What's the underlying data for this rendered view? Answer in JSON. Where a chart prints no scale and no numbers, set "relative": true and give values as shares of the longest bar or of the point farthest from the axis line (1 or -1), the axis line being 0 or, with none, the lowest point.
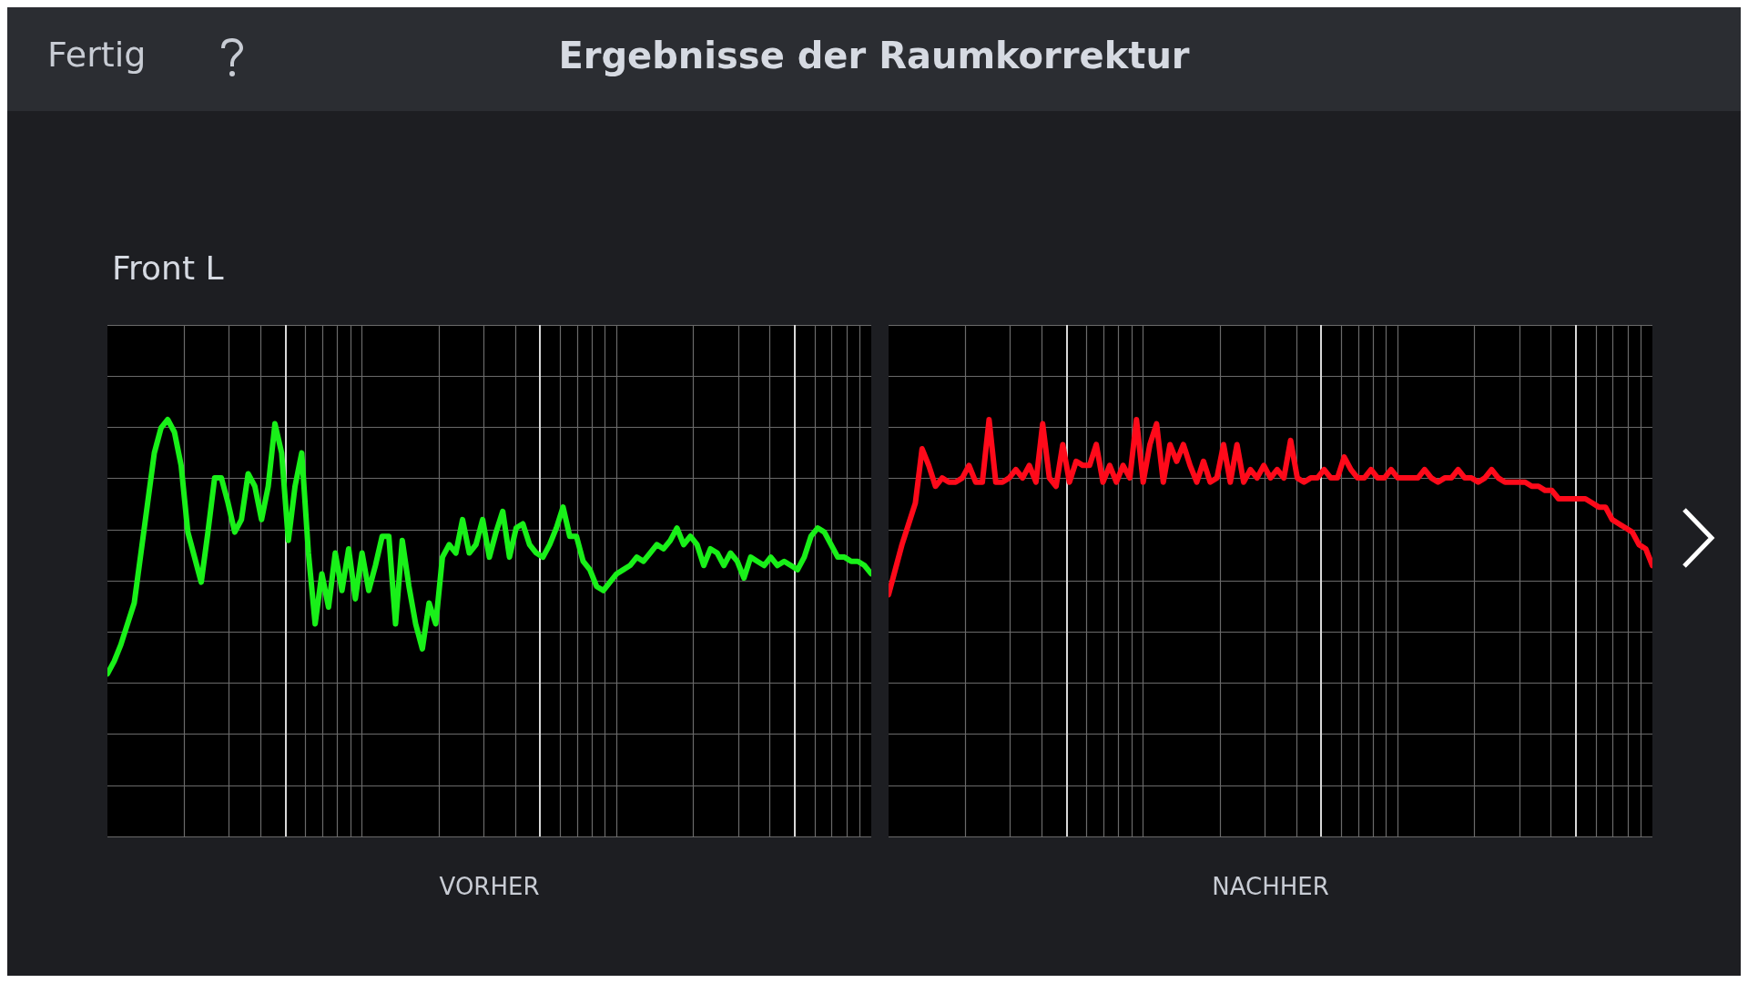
{
  "chart_data": [
    {
      "type": "line",
      "title": "Ergebnisse der Raumkorrektur",
      "subtitle": "Front L",
      "annotations": [
        "Fertig"
      ],
      "xlabel": "VORHER",
      "relative": true,
      "grid": true,
      "marker": "none",
      "line_style": "solid",
      "categories": [
        null,
        null,
        null,
        null,
        null,
        null,
        null,
        null,
        null,
        null,
        null,
        null,
        null,
        null,
        null,
        null,
        null,
        null,
        null,
        null,
        null,
        null,
        null,
        null,
        null,
        null,
        null,
        null,
        null,
        null,
        null,
        null,
        null,
        null,
        null,
        null,
        null,
        null,
        null,
        null,
        null,
        null,
        null,
        null,
        null,
        null,
        null,
        null,
        null,
        null,
        null,
        null,
        null,
        null,
        null,
        null,
        null,
        null,
        null,
        null,
        null,
        null,
        null,
        null,
        null,
        null,
        null,
        null,
        null,
        null,
        null,
        null,
        null,
        null,
        null,
        null,
        null,
        null,
        null,
        null,
        null,
        null,
        null,
        null,
        null,
        null,
        null,
        null,
        null,
        null,
        null,
        null,
        null,
        null,
        null,
        null,
        null,
        null,
        null,
        null,
        null,
        null,
        null,
        null,
        null,
        null,
        null,
        null,
        null,
        null,
        null,
        null,
        null,
        null,
        null
      ],
      "series": [
        {
          "color": "#19f019",
          "values": [
            0.39,
            0.42,
            0.46,
            0.51,
            0.56,
            0.68,
            0.8,
            0.92,
            0.98,
            1.0,
            0.97,
            0.89,
            0.73,
            0.67,
            0.61,
            0.73,
            0.86,
            0.86,
            0.8,
            0.73,
            0.76,
            0.87,
            0.84,
            0.76,
            0.84,
            0.99,
            0.92,
            0.71,
            0.84,
            0.92,
            0.68,
            0.51,
            0.63,
            0.55,
            0.68,
            0.59,
            0.69,
            0.57,
            0.68,
            0.59,
            0.65,
            0.72,
            0.72,
            0.51,
            0.71,
            0.6,
            0.51,
            0.45,
            0.56,
            0.51,
            0.67,
            0.7,
            0.68,
            0.76,
            0.68,
            0.7,
            0.76,
            0.67,
            0.73,
            0.78,
            0.67,
            0.74,
            0.75,
            0.7,
            0.68,
            0.67,
            0.7,
            0.74,
            0.79,
            0.72,
            0.72,
            0.66,
            0.64,
            0.6,
            0.59,
            0.61,
            0.63,
            0.64,
            0.65,
            0.67,
            0.66,
            0.68,
            0.7,
            0.69,
            0.71,
            0.74,
            0.7,
            0.72,
            0.7,
            0.65,
            0.69,
            0.68,
            0.65,
            0.68,
            0.66,
            0.62,
            0.67,
            0.66,
            0.65,
            0.67,
            0.65,
            0.66,
            0.65,
            0.64,
            0.67,
            0.72,
            0.74,
            0.73,
            0.7,
            0.67,
            0.67,
            0.66,
            0.66,
            0.65,
            0.63
          ]
        }
      ]
    },
    {
      "type": "line",
      "xlabel": "NACHHER",
      "relative": true,
      "grid": true,
      "marker": "none",
      "line_style": "solid",
      "categories": [
        null,
        null,
        null,
        null,
        null,
        null,
        null,
        null,
        null,
        null,
        null,
        null,
        null,
        null,
        null,
        null,
        null,
        null,
        null,
        null,
        null,
        null,
        null,
        null,
        null,
        null,
        null,
        null,
        null,
        null,
        null,
        null,
        null,
        null,
        null,
        null,
        null,
        null,
        null,
        null,
        null,
        null,
        null,
        null,
        null,
        null,
        null,
        null,
        null,
        null,
        null,
        null,
        null,
        null,
        null,
        null,
        null,
        null,
        null,
        null,
        null,
        null,
        null,
        null,
        null,
        null,
        null,
        null,
        null,
        null,
        null,
        null,
        null,
        null,
        null,
        null,
        null,
        null,
        null,
        null,
        null,
        null,
        null,
        null,
        null,
        null,
        null,
        null,
        null,
        null,
        null,
        null,
        null,
        null,
        null,
        null,
        null,
        null,
        null,
        null,
        null,
        null,
        null,
        null,
        null,
        null,
        null,
        null,
        null,
        null,
        null,
        null,
        null,
        null,
        null
      ],
      "series": [
        {
          "color": "#ff0a1a",
          "values": [
            0.58,
            0.64,
            0.7,
            0.75,
            0.8,
            0.93,
            0.89,
            0.84,
            0.86,
            0.85,
            0.85,
            0.86,
            0.89,
            0.85,
            0.85,
            1.0,
            0.85,
            0.85,
            0.86,
            0.88,
            0.86,
            0.89,
            0.85,
            0.99,
            0.86,
            0.84,
            0.94,
            0.85,
            0.9,
            0.89,
            0.89,
            0.94,
            0.85,
            0.89,
            0.85,
            0.89,
            0.86,
            1.0,
            0.85,
            0.94,
            0.99,
            0.85,
            0.94,
            0.9,
            0.94,
            0.89,
            0.85,
            0.9,
            0.85,
            0.86,
            0.94,
            0.85,
            0.94,
            0.85,
            0.88,
            0.86,
            0.89,
            0.86,
            0.88,
            0.86,
            0.95,
            0.86,
            0.85,
            0.86,
            0.86,
            0.88,
            0.86,
            0.86,
            0.91,
            0.88,
            0.86,
            0.86,
            0.88,
            0.86,
            0.86,
            0.88,
            0.86,
            0.86,
            0.86,
            0.86,
            0.88,
            0.86,
            0.85,
            0.86,
            0.86,
            0.88,
            0.86,
            0.86,
            0.85,
            0.86,
            0.88,
            0.86,
            0.85,
            0.85,
            0.85,
            0.85,
            0.84,
            0.84,
            0.83,
            0.83,
            0.81,
            0.81,
            0.81,
            0.81,
            0.81,
            0.8,
            0.79,
            0.79,
            0.76,
            0.75,
            0.74,
            0.73,
            0.7,
            0.69,
            0.65
          ]
        }
      ]
    }
  ]
}
